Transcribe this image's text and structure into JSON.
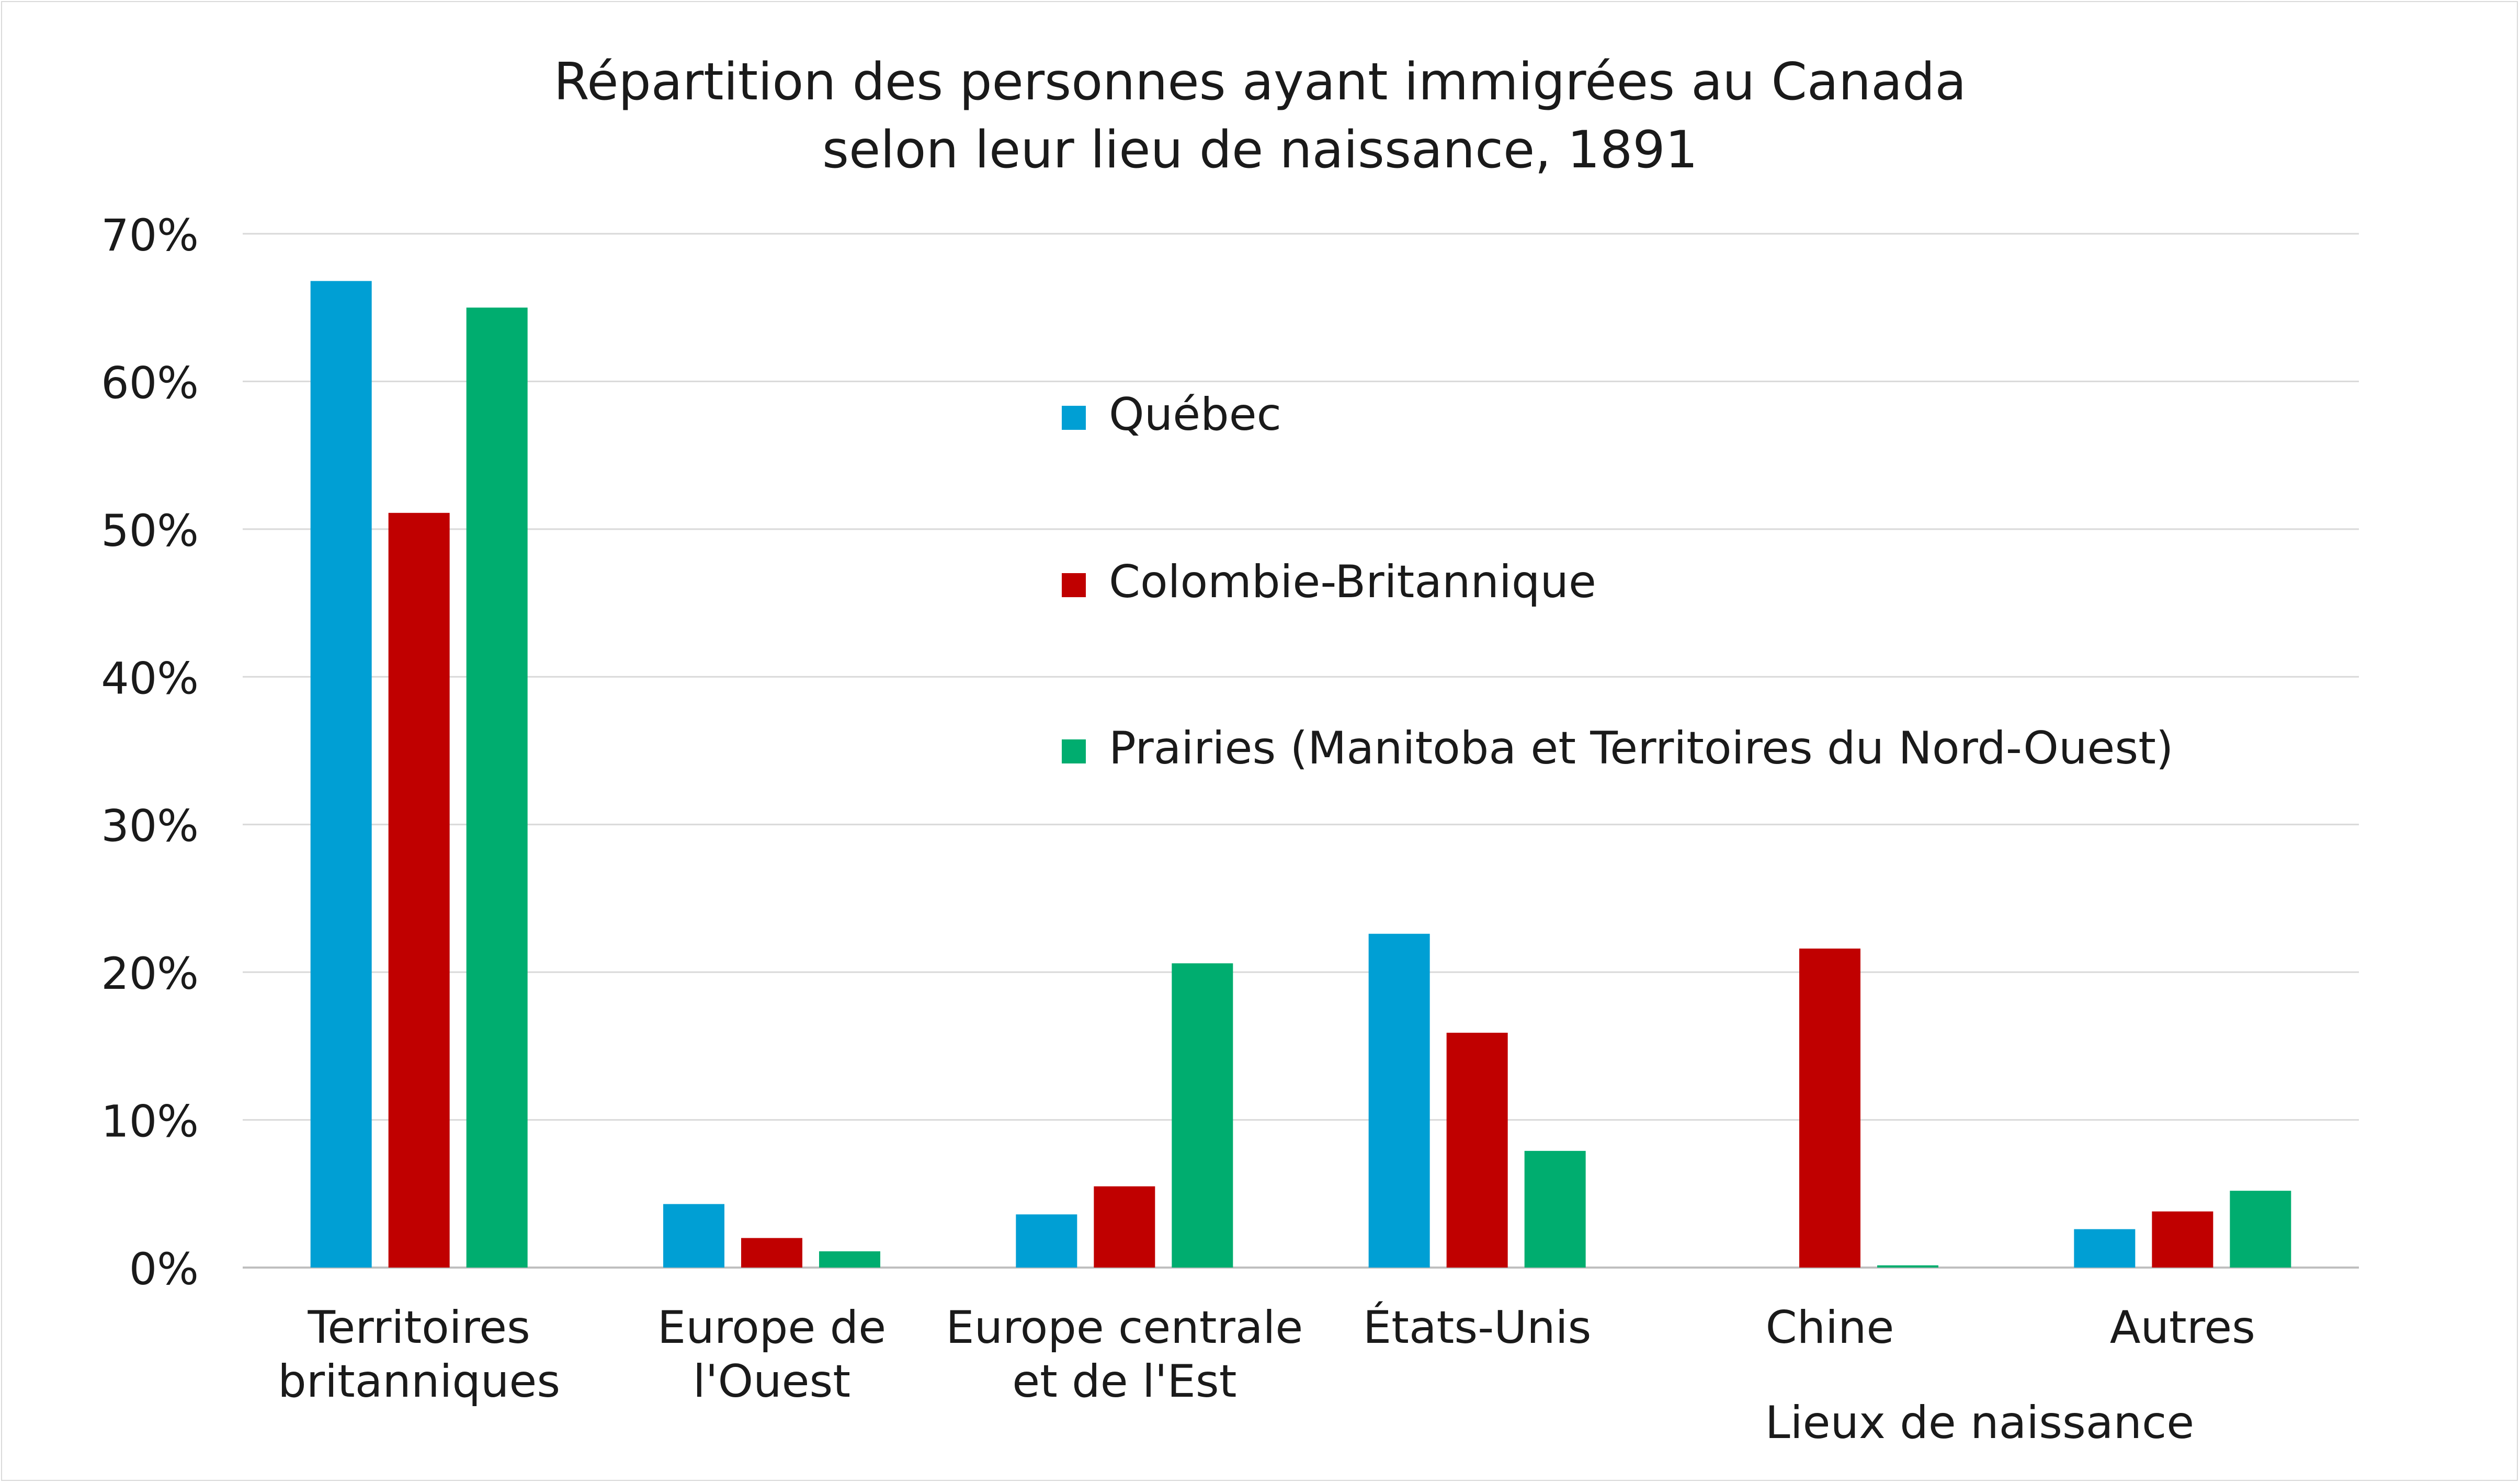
{
  "chart_data": {
    "type": "bar",
    "title": [
      "Répartition des personnes ayant immigrées au Canada",
      "selon leur lieu de naissance, 1891"
    ],
    "xlabel": "Lieux de naissance",
    "ylabel": "",
    "categories": [
      [
        "Territoires",
        "britanniques"
      ],
      [
        "Europe de",
        "l'Ouest"
      ],
      [
        "Europe centrale",
        "et de l'Est"
      ],
      [
        "États-Unis"
      ],
      [
        "Chine"
      ],
      [
        "Autres"
      ]
    ],
    "ylim": [
      0,
      70
    ],
    "yticks": [
      0,
      10,
      20,
      30,
      40,
      50,
      60,
      70
    ],
    "ytick_labels": [
      "0%",
      "10%",
      "20%",
      "30%",
      "40%",
      "50%",
      "60%",
      "70%"
    ],
    "grid": true,
    "legend_position": "center-right",
    "series": [
      {
        "name": "Québec",
        "color": "#009fd4",
        "values": [
          66.8,
          4.3,
          3.6,
          22.6,
          0.0,
          2.6
        ]
      },
      {
        "name": "Colombie-Britannique",
        "color": "#c00000",
        "values": [
          51.1,
          2.0,
          5.5,
          15.9,
          21.6,
          3.8
        ]
      },
      {
        "name": "Prairies (Manitoba et Territoires du Nord-Ouest)",
        "color": "#00ad6f",
        "values": [
          65.0,
          1.1,
          20.6,
          7.9,
          0.15,
          5.2
        ]
      }
    ]
  }
}
